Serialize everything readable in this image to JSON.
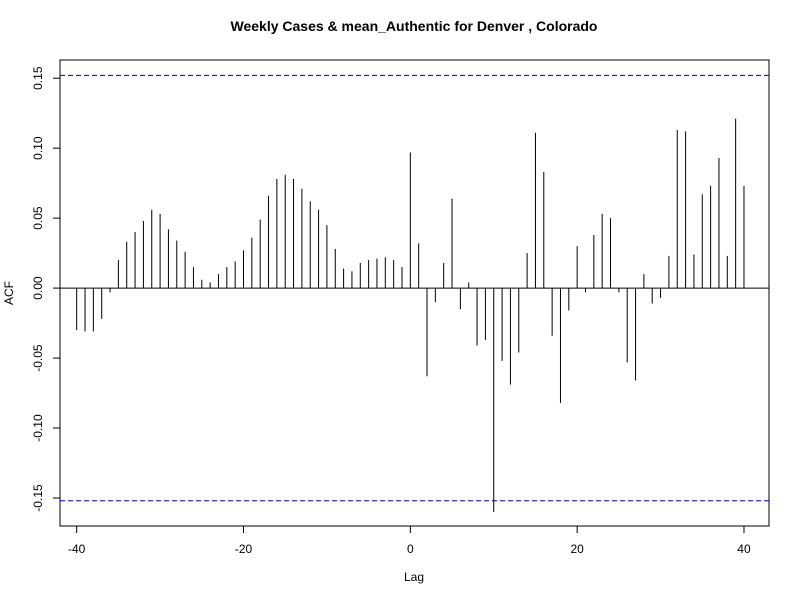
{
  "chart_data": {
    "type": "bar",
    "title": "Weekly Cases & mean_Authentic for Denver , Colorado",
    "xlabel": "Lag",
    "ylabel": "ACF",
    "xlim": [
      -42,
      43
    ],
    "ylim": [
      -0.17,
      0.163
    ],
    "x_ticks": [
      -40,
      -20,
      0,
      20,
      40
    ],
    "x_tick_labels": [
      "-40",
      "-20",
      "0",
      "20",
      "40"
    ],
    "y_ticks": [
      -0.15,
      -0.1,
      -0.05,
      0.0,
      0.05,
      0.1,
      0.15
    ],
    "y_tick_labels": [
      "-0.15",
      "-0.10",
      "-0.05",
      "0.00",
      "0.05",
      "0.10",
      "0.15"
    ],
    "confidence_bound": 0.152,
    "confidence_line_color": "#0000cc",
    "bar_color": "#000000",
    "zero_line_color": "#000000",
    "lags": [
      -40,
      -39,
      -38,
      -37,
      -36,
      -35,
      -34,
      -33,
      -32,
      -31,
      -30,
      -29,
      -28,
      -27,
      -26,
      -25,
      -24,
      -23,
      -22,
      -21,
      -20,
      -19,
      -18,
      -17,
      -16,
      -15,
      -14,
      -13,
      -12,
      -11,
      -10,
      -9,
      -8,
      -7,
      -6,
      -5,
      -4,
      -3,
      -2,
      -1,
      0,
      1,
      2,
      3,
      4,
      5,
      6,
      7,
      8,
      9,
      10,
      11,
      12,
      13,
      14,
      15,
      16,
      17,
      18,
      19,
      20,
      21,
      22,
      23,
      24,
      25,
      26,
      27,
      28,
      29,
      30,
      31,
      32,
      33,
      34,
      35,
      36,
      37,
      38,
      39,
      40
    ],
    "values": [
      -0.03,
      -0.031,
      -0.031,
      -0.022,
      -0.003,
      0.02,
      0.033,
      0.04,
      0.048,
      0.056,
      0.053,
      0.042,
      0.034,
      0.026,
      0.015,
      0.006,
      0.004,
      0.01,
      0.015,
      0.019,
      0.027,
      0.036,
      0.049,
      0.066,
      0.078,
      0.081,
      0.078,
      0.071,
      0.062,
      0.056,
      0.045,
      0.028,
      0.014,
      0.012,
      0.018,
      0.02,
      0.021,
      0.022,
      0.02,
      0.015,
      0.097,
      0.032,
      -0.063,
      -0.01,
      0.018,
      0.064,
      -0.015,
      0.004,
      -0.041,
      -0.037,
      -0.16,
      -0.052,
      -0.069,
      -0.046,
      0.025,
      0.111,
      0.083,
      -0.034,
      -0.082,
      -0.016,
      0.03,
      -0.003,
      0.038,
      0.053,
      0.05,
      -0.003,
      -0.053,
      -0.066,
      0.01,
      -0.011,
      -0.007,
      0.023,
      0.113,
      0.112,
      0.024,
      0.067,
      0.073,
      0.093,
      0.023,
      0.121,
      0.073
    ]
  }
}
